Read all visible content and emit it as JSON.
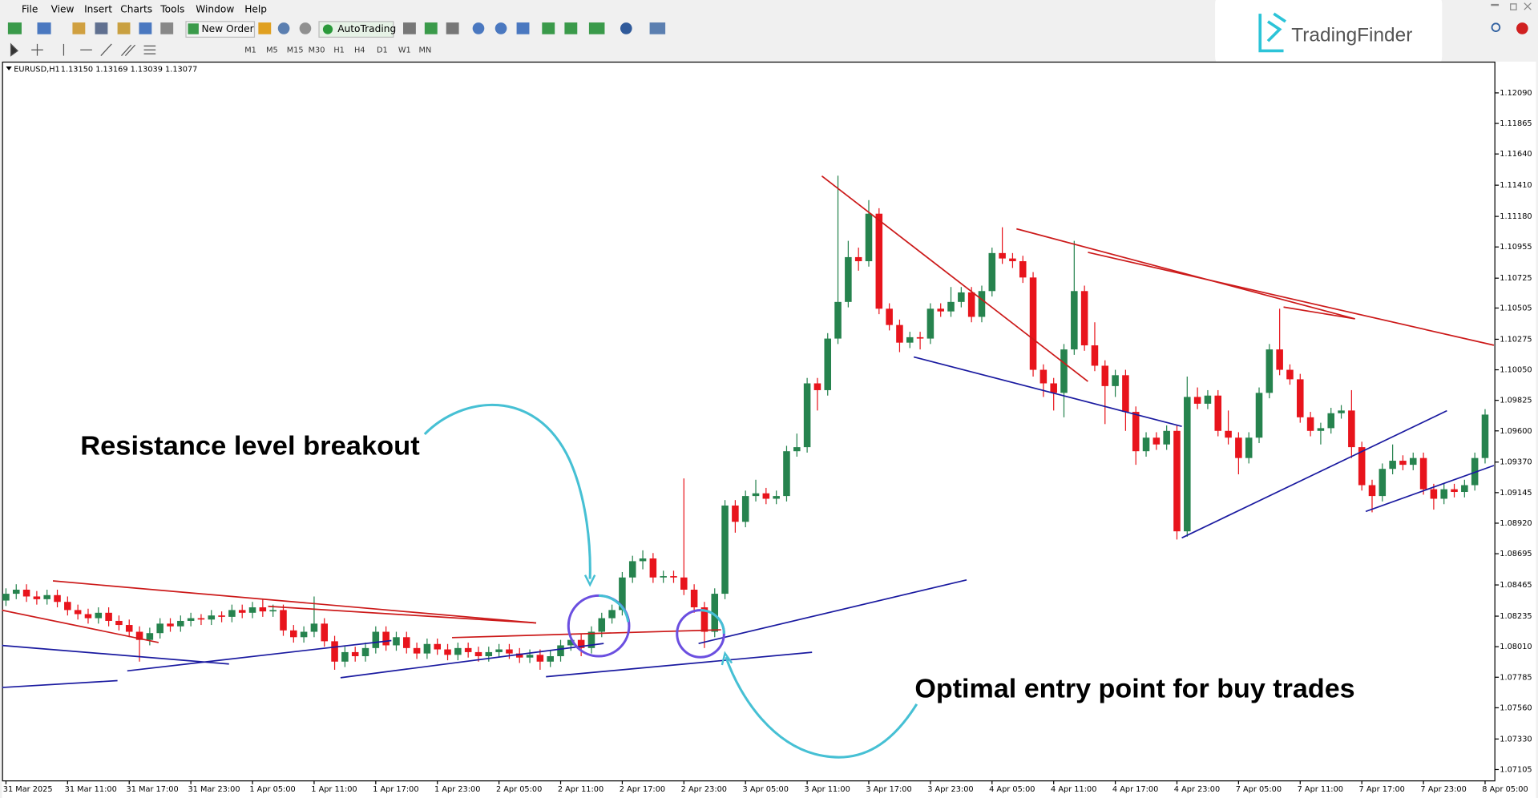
{
  "menu": [
    "File",
    "View",
    "Insert",
    "Charts",
    "Tools",
    "Window",
    "Help"
  ],
  "toolbar": {
    "new_order": "New Order",
    "auto_trading": "AutoTrading",
    "timeframes": [
      "M1",
      "M5",
      "M15",
      "M30",
      "H1",
      "H4",
      "D1",
      "W1",
      "MN"
    ]
  },
  "logo": "TradingFinder",
  "chart_data": {
    "type": "candlestick",
    "symbol": "EURUSD,H1",
    "ohlc_info": "1.13150 1.13169 1.13039 1.13077",
    "annotations": [
      "Resistance level breakout",
      "Optimal entry point for buy trades"
    ],
    "up_color": "#26834e",
    "down_color": "#e8141c",
    "categories": [
      "31 Mar 2025",
      null,
      null,
      null,
      null,
      null,
      "31 Mar 11:00",
      null,
      null,
      null,
      null,
      null,
      "31 Mar 17:00",
      null,
      null,
      null,
      null,
      null,
      "31 Mar 23:00",
      null,
      null,
      null,
      null,
      null,
      "1 Apr 05:00",
      null,
      null,
      null,
      null,
      null,
      "1 Apr 11:00",
      null,
      null,
      null,
      null,
      null,
      "1 Apr 17:00",
      null,
      null,
      null,
      null,
      null,
      "1 Apr 23:00",
      null,
      null,
      null,
      null,
      null,
      "2 Apr 05:00",
      null,
      null,
      null,
      null,
      null,
      "2 Apr 11:00",
      null,
      null,
      null,
      null,
      null,
      "2 Apr 17:00",
      null,
      null,
      null,
      null,
      null,
      "2 Apr 23:00",
      null,
      null,
      null,
      null,
      null,
      "3 Apr 05:00",
      null,
      null,
      null,
      null,
      null,
      "3 Apr 11:00",
      null,
      null,
      null,
      null,
      null,
      "3 Apr 17:00",
      null,
      null,
      null,
      null,
      null,
      "3 Apr 23:00",
      null,
      null,
      null,
      null,
      null,
      "4 Apr 05:00",
      null,
      null,
      null,
      null,
      null,
      "4 Apr 11:00",
      null,
      null,
      null,
      null,
      null,
      "4 Apr 17:00",
      null,
      null,
      null,
      null,
      null,
      "4 Apr 23:00",
      null,
      null,
      null,
      null,
      null,
      "7 Apr 05:00",
      null,
      null,
      null,
      null,
      null,
      "7 Apr 11:00",
      null,
      null,
      null,
      null,
      null,
      "7 Apr 17:00",
      null,
      null,
      null,
      null,
      null,
      "7 Apr 23:00",
      null,
      null,
      null,
      null,
      null,
      "8 Apr 05:00"
    ],
    "open": [
      1.0835,
      1.084,
      1.0843,
      1.0838,
      1.0836,
      1.0839,
      1.0834,
      1.0828,
      1.0825,
      1.0822,
      1.0826,
      1.082,
      1.0817,
      1.0812,
      1.0806,
      1.0811,
      1.0818,
      1.0816,
      1.082,
      1.0822,
      1.0821,
      1.0824,
      1.0823,
      1.0828,
      1.0826,
      1.083,
      1.0827,
      1.0828,
      1.0813,
      1.0808,
      1.0812,
      1.0818,
      1.0805,
      1.079,
      1.0797,
      1.0794,
      1.08,
      1.0812,
      1.0802,
      1.0808,
      1.08,
      1.0796,
      1.0803,
      1.0799,
      1.0795,
      1.08,
      1.0797,
      1.0794,
      1.0797,
      1.0799,
      1.0796,
      1.0793,
      1.0795,
      1.079,
      1.0794,
      1.0802,
      1.0806,
      1.08,
      1.0812,
      1.0822,
      1.0828,
      1.0852,
      1.0864,
      1.0866,
      1.0852,
      1.0853,
      1.0852,
      1.0843,
      1.083,
      1.0812,
      1.084,
      1.0905,
      1.0893,
      1.0912,
      1.0914,
      1.091,
      1.0912,
      1.0945,
      1.0948,
      1.0995,
      1.099,
      1.1028,
      1.1055,
      1.1088,
      1.1085,
      1.112,
      1.105,
      1.1038,
      1.1025,
      1.1029,
      1.1028,
      1.105,
      1.1048,
      1.1055,
      1.1062,
      1.1044,
      1.1063,
      1.1091,
      1.1087,
      1.1085,
      1.1073,
      1.1005,
      1.0995,
      1.0988,
      1.102,
      1.1063,
      1.1023,
      1.1008,
      1.0993,
      1.1001,
      1.0974,
      1.0945,
      1.0955,
      1.095,
      1.096,
      1.0886,
      1.0985,
      1.098,
      1.0986,
      1.096,
      1.0955,
      1.094,
      1.0955,
      1.0988,
      1.102,
      1.1005,
      1.0998,
      1.097,
      1.096,
      1.0962,
      1.0973,
      1.0975,
      1.0948,
      1.092,
      1.0912,
      1.0932,
      1.0938,
      1.0935,
      1.094,
      1.0917,
      1.091,
      1.0917,
      1.0915,
      1.092,
      1.094
    ],
    "high": [
      1.0844,
      1.0847,
      1.0847,
      1.0842,
      1.0843,
      1.0843,
      1.0838,
      1.0832,
      1.0829,
      1.083,
      1.083,
      1.0824,
      1.0821,
      1.0816,
      1.0815,
      1.0822,
      1.0822,
      1.0824,
      1.0826,
      1.0825,
      1.0828,
      1.0827,
      1.0832,
      1.0832,
      1.0834,
      1.0836,
      1.0832,
      1.0832,
      1.0817,
      1.0816,
      1.0838,
      1.0822,
      1.0809,
      1.0801,
      1.0801,
      1.0804,
      1.0816,
      1.0816,
      1.0812,
      1.0812,
      1.0804,
      1.0807,
      1.0807,
      1.0803,
      1.0804,
      1.0804,
      1.0801,
      1.0801,
      1.0803,
      1.0803,
      1.08,
      1.0799,
      1.0799,
      1.0798,
      1.0806,
      1.081,
      1.081,
      1.0816,
      1.0826,
      1.0832,
      1.0856,
      1.0868,
      1.0872,
      1.087,
      1.0857,
      1.0857,
      1.0925,
      1.0847,
      1.0834,
      1.0844,
      1.0909,
      1.0909,
      1.0916,
      1.0924,
      1.0918,
      1.0916,
      1.0949,
      1.0958,
      1.0999,
      1.0999,
      1.1032,
      1.1148,
      1.11,
      1.1095,
      1.113,
      1.1124,
      1.1054,
      1.1042,
      1.1033,
      1.1033,
      1.1054,
      1.1054,
      1.1066,
      1.1066,
      1.1066,
      1.1067,
      1.1095,
      1.111,
      1.1091,
      1.1089,
      1.1077,
      1.1009,
      1.0999,
      1.1024,
      1.11,
      1.1067,
      1.104,
      1.1012,
      1.1005,
      1.1005,
      1.0978,
      1.0959,
      1.0959,
      1.0964,
      1.0964,
      1.1,
      1.0992,
      1.099,
      1.099,
      1.0975,
      1.0959,
      1.0959,
      1.0992,
      1.1024,
      1.105,
      1.1009,
      1.1002,
      1.0974,
      1.0966,
      1.0977,
      1.0979,
      1.099,
      1.0952,
      1.0924,
      1.0936,
      1.095,
      1.0942,
      1.0944,
      1.0944,
      1.0921,
      1.0921,
      1.0921,
      1.0924,
      1.0944,
      1.0976
    ],
    "low": [
      1.0831,
      1.0836,
      1.0834,
      1.0832,
      1.0832,
      1.083,
      1.0824,
      1.0821,
      1.0818,
      1.0818,
      1.0816,
      1.0813,
      1.0808,
      1.079,
      1.0802,
      1.0807,
      1.0812,
      1.0812,
      1.0816,
      1.0817,
      1.0817,
      1.0819,
      1.0819,
      1.0822,
      1.0822,
      1.0823,
      1.0823,
      1.0809,
      1.0804,
      1.0804,
      1.0808,
      1.0801,
      1.0784,
      1.0786,
      1.079,
      1.079,
      1.0796,
      1.0798,
      1.0798,
      1.0796,
      1.0792,
      1.0792,
      1.0795,
      1.0791,
      1.0791,
      1.0793,
      1.079,
      1.079,
      1.0793,
      1.0792,
      1.0789,
      1.0789,
      1.0784,
      1.0786,
      1.079,
      1.0798,
      1.0794,
      1.0796,
      1.0808,
      1.0818,
      1.0824,
      1.0848,
      1.0858,
      1.0848,
      1.0848,
      1.0848,
      1.0839,
      1.0826,
      1.08,
      1.0808,
      1.0836,
      1.0885,
      1.0889,
      1.0908,
      1.0906,
      1.0906,
      1.0908,
      1.0941,
      1.0944,
      1.0975,
      1.0986,
      1.1024,
      1.1051,
      1.1078,
      1.1081,
      1.1046,
      1.1034,
      1.1018,
      1.1021,
      1.102,
      1.1024,
      1.1044,
      1.1044,
      1.1051,
      1.104,
      1.104,
      1.1059,
      1.1083,
      1.108,
      1.1069,
      1.1,
      1.0985,
      1.0975,
      1.097,
      1.1016,
      1.1019,
      1.1004,
      1.0965,
      1.0985,
      1.096,
      1.0935,
      1.0941,
      1.0946,
      1.0946,
      1.088,
      1.0882,
      1.0976,
      1.0976,
      1.0956,
      1.095,
      1.0928,
      1.0936,
      1.0951,
      1.0984,
      1.1001,
      1.0994,
      1.0966,
      1.0956,
      1.095,
      1.0958,
      1.0969,
      1.094,
      1.0916,
      1.09,
      1.0908,
      1.0928,
      1.0931,
      1.0931,
      1.0913,
      1.0902,
      1.0906,
      1.0911,
      1.0911,
      1.0916,
      1.0936
    ],
    "close": [
      1.084,
      1.0843,
      1.0838,
      1.0836,
      1.0839,
      1.0834,
      1.0828,
      1.0825,
      1.0822,
      1.0826,
      1.082,
      1.0817,
      1.0812,
      1.0806,
      1.0811,
      1.0818,
      1.0816,
      1.082,
      1.0822,
      1.0821,
      1.0824,
      1.0823,
      1.0828,
      1.0826,
      1.083,
      1.0827,
      1.0828,
      1.0813,
      1.0808,
      1.0812,
      1.0818,
      1.0805,
      1.079,
      1.0797,
      1.0794,
      1.08,
      1.0812,
      1.0802,
      1.0808,
      1.08,
      1.0796,
      1.0803,
      1.0799,
      1.0795,
      1.08,
      1.0797,
      1.0794,
      1.0797,
      1.0799,
      1.0796,
      1.0793,
      1.0795,
      1.079,
      1.0794,
      1.0802,
      1.0806,
      1.08,
      1.0812,
      1.0822,
      1.0828,
      1.0852,
      1.0864,
      1.0866,
      1.0852,
      1.0853,
      1.0852,
      1.0843,
      1.083,
      1.0812,
      1.084,
      1.0905,
      1.0893,
      1.0912,
      1.0914,
      1.091,
      1.0912,
      1.0945,
      1.0948,
      1.0995,
      1.099,
      1.1028,
      1.1055,
      1.1088,
      1.1085,
      1.112,
      1.105,
      1.1038,
      1.1025,
      1.1029,
      1.1028,
      1.105,
      1.1048,
      1.1055,
      1.1062,
      1.1044,
      1.1063,
      1.1091,
      1.1087,
      1.1085,
      1.1073,
      1.1005,
      1.0995,
      1.0988,
      1.102,
      1.1063,
      1.1023,
      1.1008,
      1.0993,
      1.1001,
      1.0974,
      1.0945,
      1.0955,
      1.095,
      1.096,
      1.0886,
      1.0985,
      1.098,
      1.0986,
      1.096,
      1.0955,
      1.094,
      1.0955,
      1.0988,
      1.102,
      1.1005,
      1.0998,
      1.097,
      1.096,
      1.0962,
      1.0973,
      1.0975,
      1.0948,
      1.092,
      1.0912,
      1.0932,
      1.0938,
      1.0935,
      1.094,
      1.0917,
      1.091,
      1.0917,
      1.0915,
      1.092,
      1.094,
      1.0972
    ],
    "ylim": [
      1.07025,
      1.12306
    ],
    "yticks": [
      {
        "value": 1.1209,
        "label": "1.12090"
      },
      {
        "value": 1.11865,
        "label": "1.11865"
      },
      {
        "value": 1.1164,
        "label": "1.11640"
      },
      {
        "value": 1.1141,
        "label": "1.11410"
      },
      {
        "value": 1.1118,
        "label": "1.11180"
      },
      {
        "value": 1.10955,
        "label": "1.10955"
      },
      {
        "value": 1.10725,
        "label": "1.10725"
      },
      {
        "value": 1.10505,
        "label": "1.10505"
      },
      {
        "value": 1.10275,
        "label": "1.10275"
      },
      {
        "value": 1.1005,
        "label": "1.10050"
      },
      {
        "value": 1.09825,
        "label": "1.09825"
      },
      {
        "value": 1.096,
        "label": "1.09600"
      },
      {
        "value": 1.0937,
        "label": "1.09370"
      },
      {
        "value": 1.09145,
        "label": "1.09145"
      },
      {
        "value": 1.0892,
        "label": "1.08920"
      },
      {
        "value": 1.08695,
        "label": "1.08695"
      },
      {
        "value": 1.08465,
        "label": "1.08465"
      },
      {
        "value": 1.08235,
        "label": "1.08235"
      },
      {
        "value": 1.0801,
        "label": "1.08010"
      },
      {
        "value": 1.07785,
        "label": "1.07785"
      },
      {
        "value": 1.0756,
        "label": "1.07560"
      },
      {
        "value": 1.0733,
        "label": "1.07330"
      },
      {
        "value": 1.07105,
        "label": "1.07105"
      }
    ],
    "grid": false
  }
}
